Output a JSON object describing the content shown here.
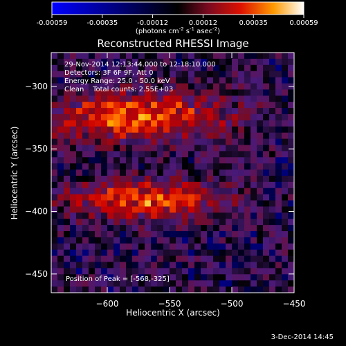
{
  "chart_data": {
    "type": "heatmap",
    "title": "Reconstructed RHESSI Image",
    "xlabel": "Heliocentric X (arcsec)",
    "ylabel": "Heliocentric Y (arcsec)",
    "xlim": [
      -645,
      -450
    ],
    "ylim": [
      -465,
      -273
    ],
    "xticks": [
      -600,
      -550,
      -500,
      -450
    ],
    "yticks": [
      -300,
      -350,
      -400,
      -450
    ],
    "colorbar": {
      "ticks": [
        "-0.00059",
        "-0.00035",
        "-0.00012",
        "0.00012",
        "0.00035",
        "0.00059"
      ],
      "vmin": -0.00059,
      "vmax": 0.00059,
      "units_label": "(photons cm",
      "units_sup1": "-2",
      "units_mid": " s",
      "units_sup2": "-1",
      "units_end": " asec",
      "units_sup3": "-2",
      "units_close": ")"
    },
    "colormap_stops": [
      "#0000ff",
      "#000000",
      "#4a1a7a",
      "#7a0a20",
      "#cc0000",
      "#ff5a00",
      "#ffb400",
      "#ffffc8"
    ],
    "emission_sources": [
      {
        "label": "upper ribbon",
        "center": [
          -575,
          -325
        ],
        "extent": [
          70,
          18
        ]
      },
      {
        "label": "lower ribbon",
        "center": [
          -568,
          -392
        ],
        "extent": [
          55,
          15
        ]
      }
    ],
    "peak": [
      -568,
      -325
    ],
    "annotations": [
      "29-Nov-2014 12:13:44.000 to 12:18:10.000",
      "Detectors: 3F 6F 9F, Att 0",
      "Energy Range: 25.0 - 50.0 keV",
      "Clean    Total counts: 2.55E+03",
      "Position of Peak = [-568,-325]"
    ],
    "grid": false
  },
  "footer_date": "3-Dec-2014 14:45"
}
